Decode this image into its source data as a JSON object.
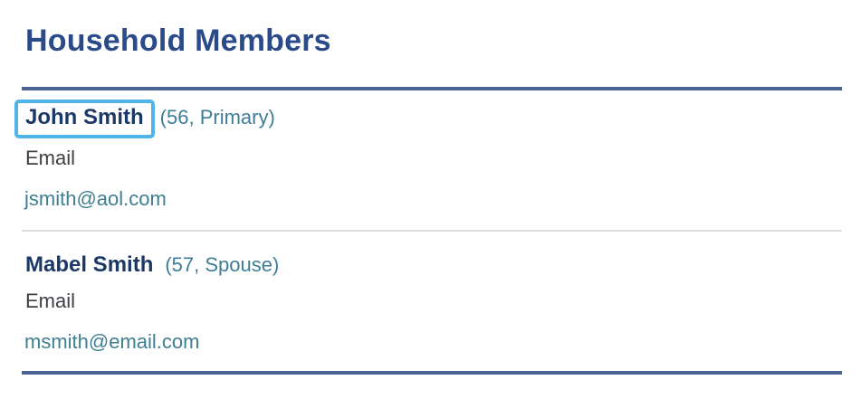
{
  "page": {
    "title": "Household Members"
  },
  "colors": {
    "title": "#2a4a8a",
    "member_name": "#1c3866",
    "member_meta": "#3e7d98",
    "field_label": "#3f4045",
    "field_value": "#3e7f91",
    "divider_strong": "#4a6291",
    "divider_light": "#dcdcdc",
    "highlight_box": "#4fb5e8"
  },
  "members": [
    {
      "name": "John Smith",
      "meta": "(56, Primary)",
      "email_label": "Email",
      "email": "jsmith@aol.com",
      "highlighted": true
    },
    {
      "name": "Mabel Smith",
      "meta": "(57, Spouse)",
      "email_label": "Email",
      "email": "msmith@email.com",
      "highlighted": false
    }
  ]
}
